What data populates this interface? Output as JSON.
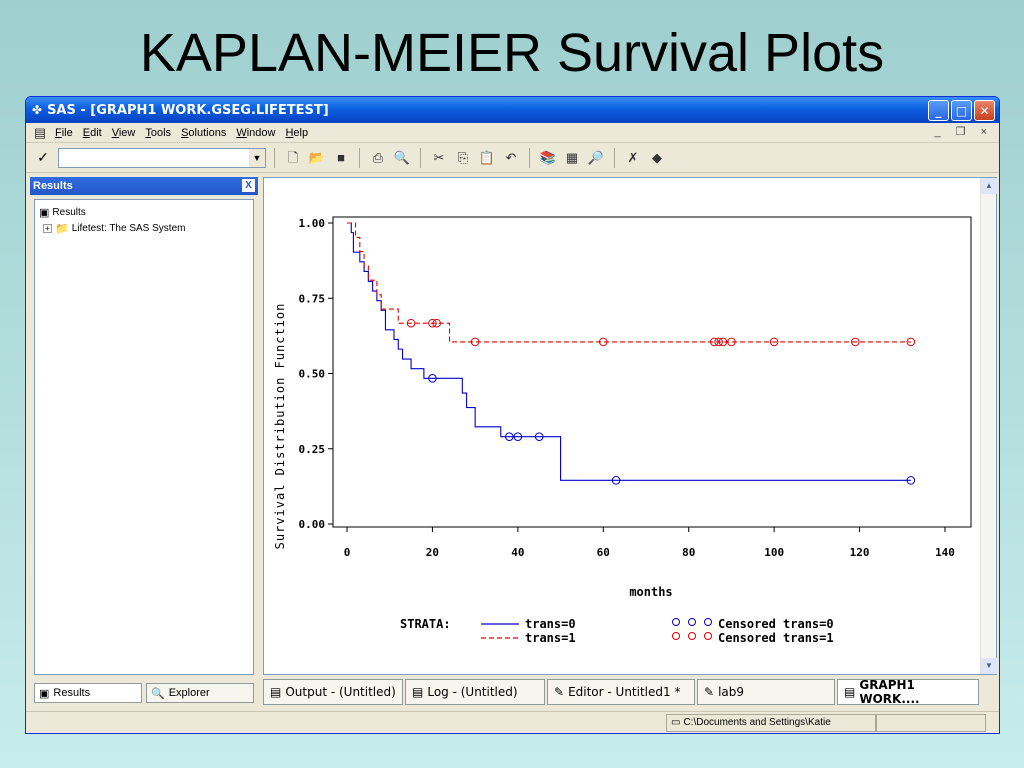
{
  "slide": {
    "title": "KAPLAN-MEIER Survival Plots"
  },
  "window": {
    "title": "SAS - [GRAPH1  WORK.GSEG.LIFETEST]",
    "controls": {
      "minimize": "_",
      "maximize": "□",
      "close": "✕"
    }
  },
  "menubar": {
    "items": [
      "File",
      "Edit",
      "View",
      "Tools",
      "Solutions",
      "Window",
      "Help"
    ],
    "mdi_controls": "_ ❐ ×"
  },
  "toolbar": {
    "command_check": "✓",
    "command_value": ""
  },
  "results_pane": {
    "header": "Results",
    "close": "X",
    "tree": {
      "root": "Results",
      "child": "Lifetest:  The SAS System"
    },
    "tabs": [
      "Results",
      "Explorer"
    ]
  },
  "chart_data": {
    "type": "line",
    "title": "",
    "xlabel": "months",
    "ylabel": "Survival Distribution Function",
    "xlim": [
      0,
      140
    ],
    "ylim": [
      0,
      1
    ],
    "x_ticks": [
      "0",
      "20",
      "40",
      "60",
      "80",
      "100",
      "120",
      "140"
    ],
    "y_ticks": [
      "0.00",
      "0.25",
      "0.50",
      "0.75",
      "1.00"
    ],
    "grid": false,
    "legend": {
      "placement": "bottom",
      "title": "STRATA:",
      "entries": [
        "trans=0",
        "trans=1",
        "Censored trans=0",
        "Censored trans=1"
      ]
    },
    "series": [
      {
        "name": "trans=0",
        "color": "#0000cc",
        "steps": [
          [
            0,
            1.0
          ],
          [
            1,
            0.968
          ],
          [
            1.5,
            0.903
          ],
          [
            3,
            0.871
          ],
          [
            4,
            0.839
          ],
          [
            5,
            0.806
          ],
          [
            6,
            0.774
          ],
          [
            7,
            0.742
          ],
          [
            8,
            0.71
          ],
          [
            9,
            0.645
          ],
          [
            11,
            0.613
          ],
          [
            12,
            0.581
          ],
          [
            13,
            0.548
          ],
          [
            15,
            0.516
          ],
          [
            18,
            0.484
          ],
          [
            27,
            0.435
          ],
          [
            28,
            0.387
          ],
          [
            30,
            0.323
          ],
          [
            36,
            0.29
          ],
          [
            50,
            0.145
          ],
          [
            132,
            0.145
          ]
        ],
        "censored": [
          [
            20,
            0.484
          ],
          [
            38,
            0.29
          ],
          [
            40,
            0.29
          ],
          [
            45,
            0.29
          ],
          [
            63,
            0.145
          ],
          [
            132,
            0.145
          ]
        ]
      },
      {
        "name": "trans=1",
        "color": "#dd0000",
        "steps": [
          [
            0,
            1.0
          ],
          [
            2,
            0.952
          ],
          [
            3,
            0.905
          ],
          [
            4,
            0.857
          ],
          [
            5,
            0.81
          ],
          [
            7,
            0.762
          ],
          [
            8,
            0.714
          ],
          [
            12,
            0.667
          ],
          [
            24,
            0.605
          ],
          [
            132,
            0.605
          ]
        ],
        "censored": [
          [
            15,
            0.667
          ],
          [
            20,
            0.667
          ],
          [
            21,
            0.667
          ],
          [
            30,
            0.605
          ],
          [
            60,
            0.605
          ],
          [
            86,
            0.605
          ],
          [
            87,
            0.605
          ],
          [
            88,
            0.605
          ],
          [
            90,
            0.605
          ],
          [
            100,
            0.605
          ],
          [
            119,
            0.605
          ],
          [
            132,
            0.605
          ]
        ]
      }
    ]
  },
  "taskbar": {
    "items": [
      "Output - (Untitled)",
      "Log - (Untitled)",
      "Editor - Untitled1 *",
      "lab9",
      "GRAPH1  WORK...."
    ]
  },
  "statusbar": {
    "path": "C:\\Documents and Settings\\Katie"
  }
}
